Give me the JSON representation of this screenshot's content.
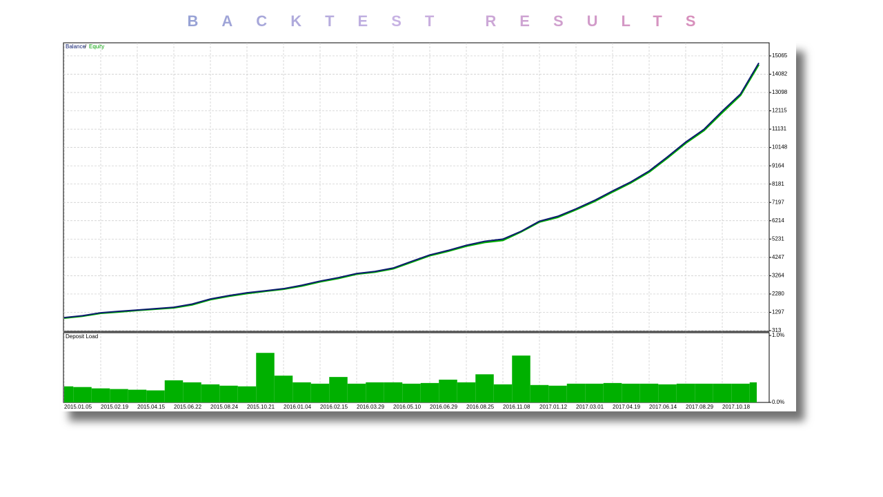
{
  "title": "BACKTEST RESULTS",
  "chart_data": [
    {
      "type": "line",
      "x": [
        "2015.01.05",
        null,
        "2015.02.19",
        null,
        "2015.04.15",
        null,
        "2015.06.22",
        null,
        "2015.08.24",
        null,
        "2015.10.21",
        null,
        "2016.01.04",
        null,
        "2016.02.15",
        null,
        "2016.03.29",
        null,
        "2016.05.10",
        null,
        "2016.06.29",
        null,
        "2016.08.25",
        null,
        "2016.11.08",
        null,
        "2017.01.12",
        null,
        "2017.03.01",
        null,
        "2017.04.19",
        null,
        "2017.06.14",
        null,
        "2017.08.29",
        null,
        "2017.10.18",
        null,
        null
      ],
      "series": [
        {
          "name": "Equity",
          "color": "#00b000",
          "values": [
            990,
            1090,
            1250,
            1320,
            1400,
            1470,
            1540,
            1700,
            1980,
            2160,
            2310,
            2430,
            2540,
            2710,
            2940,
            3120,
            3350,
            3460,
            3640,
            3990,
            4340,
            4580,
            4850,
            5050,
            5160,
            5620,
            6150,
            6400,
            6810,
            7250,
            7760,
            8250,
            8830,
            9580,
            10380,
            11060,
            12020,
            12950,
            14600
          ]
        },
        {
          "name": "Balance",
          "color": "#0a1a6e",
          "values": [
            1015,
            1115,
            1274,
            1350,
            1422,
            1495,
            1570,
            1740,
            2013,
            2195,
            2346,
            2455,
            2567,
            2750,
            2974,
            3160,
            3380,
            3490,
            3676,
            4030,
            4378,
            4620,
            4896,
            5110,
            5228,
            5650,
            6188,
            6450,
            6854,
            7300,
            7814,
            8300,
            8886,
            9640,
            10438,
            11120,
            12101,
            13020,
            14688
          ]
        }
      ],
      "ylim": [
        313,
        15767
      ],
      "yticks": [
        313,
        1297,
        2280,
        3264,
        4247,
        5231,
        6214,
        7197,
        8181,
        9164,
        10148,
        11131,
        12115,
        13098,
        14082,
        15065
      ],
      "grid": true
    },
    {
      "type": "bar",
      "title": "Deposit Load",
      "x": [
        "2015.01.05",
        null,
        "2015.02.19",
        null,
        "2015.04.15",
        null,
        "2015.06.22",
        null,
        "2015.08.24",
        null,
        "2015.10.21",
        null,
        "2016.01.04",
        null,
        "2016.02.15",
        null,
        "2016.03.29",
        null,
        "2016.05.10",
        null,
        "2016.06.29",
        null,
        "2016.08.25",
        null,
        "2016.11.08",
        null,
        "2017.01.12",
        null,
        "2017.03.01",
        null,
        "2017.04.19",
        null,
        "2017.06.14",
        null,
        "2017.08.29",
        null,
        "2017.10.18",
        null,
        null
      ],
      "values": [
        0.24,
        0.23,
        0.21,
        0.2,
        0.19,
        0.18,
        0.33,
        0.3,
        0.27,
        0.25,
        0.24,
        0.74,
        0.4,
        0.3,
        0.28,
        0.38,
        0.28,
        0.3,
        0.3,
        0.28,
        0.29,
        0.34,
        0.3,
        0.42,
        0.27,
        0.7,
        0.26,
        0.25,
        0.28,
        0.28,
        0.29,
        0.28,
        0.28,
        0.27,
        0.28,
        0.28,
        0.28,
        0.28,
        0.3
      ],
      "color": "#00b000",
      "ylim": [
        0,
        1.0
      ],
      "yticks": [
        {
          "value": 0,
          "label": "0.0%"
        },
        {
          "value": 1.0,
          "label": "1.0%"
        }
      ]
    }
  ]
}
